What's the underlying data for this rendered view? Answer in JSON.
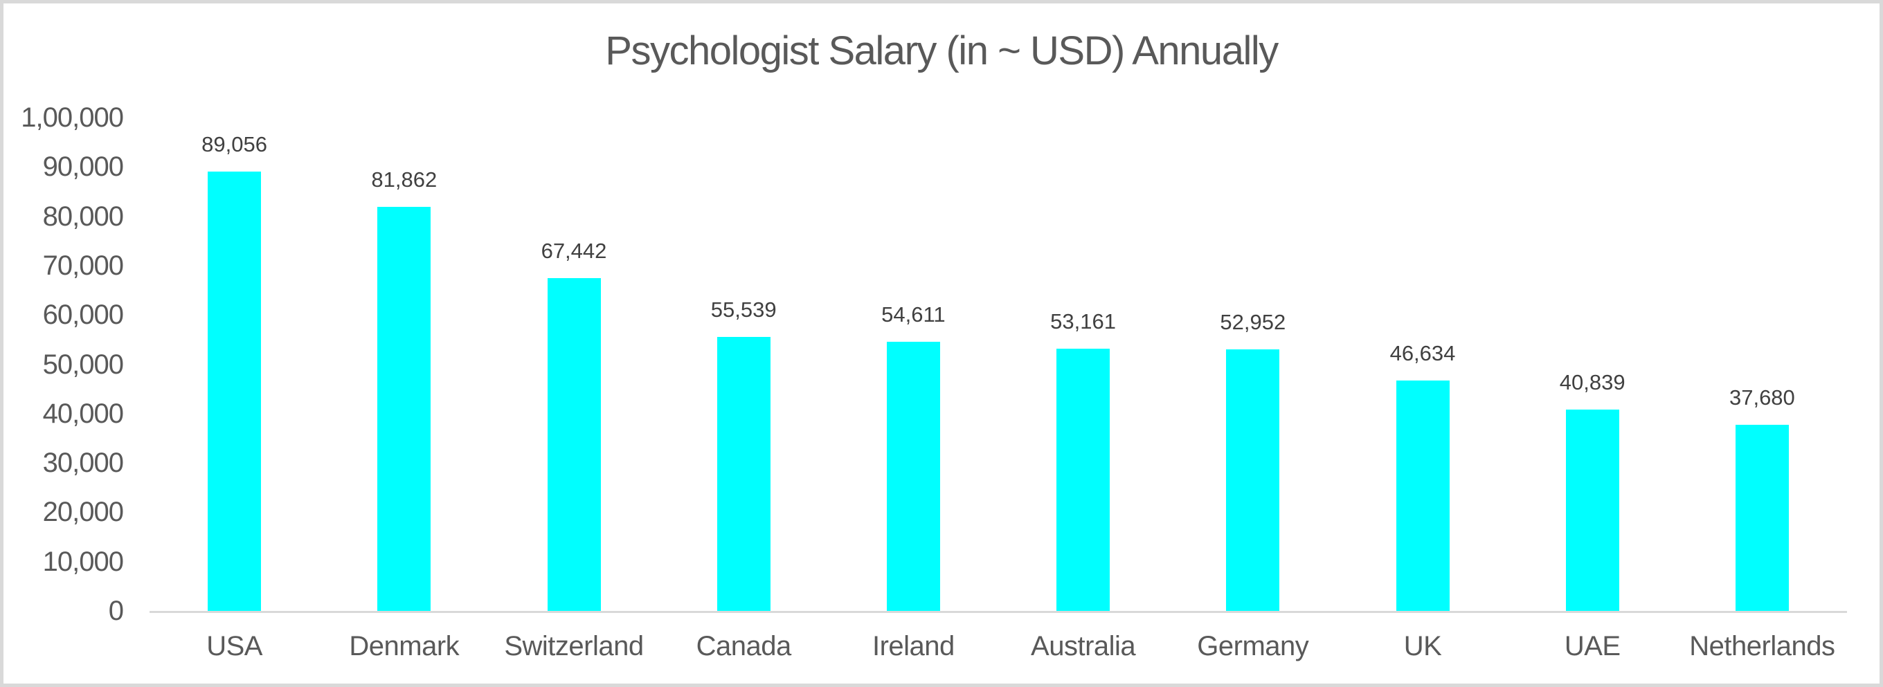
{
  "window": {
    "background": "#ffffff",
    "border_color": "#d9d9d9"
  },
  "chart_data": {
    "type": "bar",
    "title": "Psychologist Salary (in ~ USD) Annually",
    "categories": [
      "USA",
      "Denmark",
      "Switzerland",
      "Canada",
      "Ireland",
      "Australia",
      "Germany",
      "UK",
      "UAE",
      "Netherlands"
    ],
    "values": [
      89056,
      81862,
      67442,
      55539,
      54611,
      53161,
      52952,
      46634,
      40839,
      37680
    ],
    "value_labels": [
      "89,056",
      "81,862",
      "67,442",
      "55,539",
      "54,611",
      "53,161",
      "52,952",
      "46,634",
      "40,839",
      "37,680"
    ],
    "xlabel": "",
    "ylabel": "",
    "ylim": [
      0,
      100000
    ],
    "y_ticks": [
      0,
      10000,
      20000,
      30000,
      40000,
      50000,
      60000,
      70000,
      80000,
      90000,
      100000
    ],
    "y_tick_labels": [
      "0",
      "10,000",
      "20,000",
      "30,000",
      "40,000",
      "50,000",
      "60,000",
      "70,000",
      "80,000",
      "90,000",
      "1,00,000"
    ],
    "grid": false,
    "legend": "none",
    "colors": {
      "bar": "#00ffff",
      "title_text": "#595959",
      "axis_text": "#595959",
      "data_label_text": "#404040",
      "axis_line": "#d9d9d9"
    }
  }
}
